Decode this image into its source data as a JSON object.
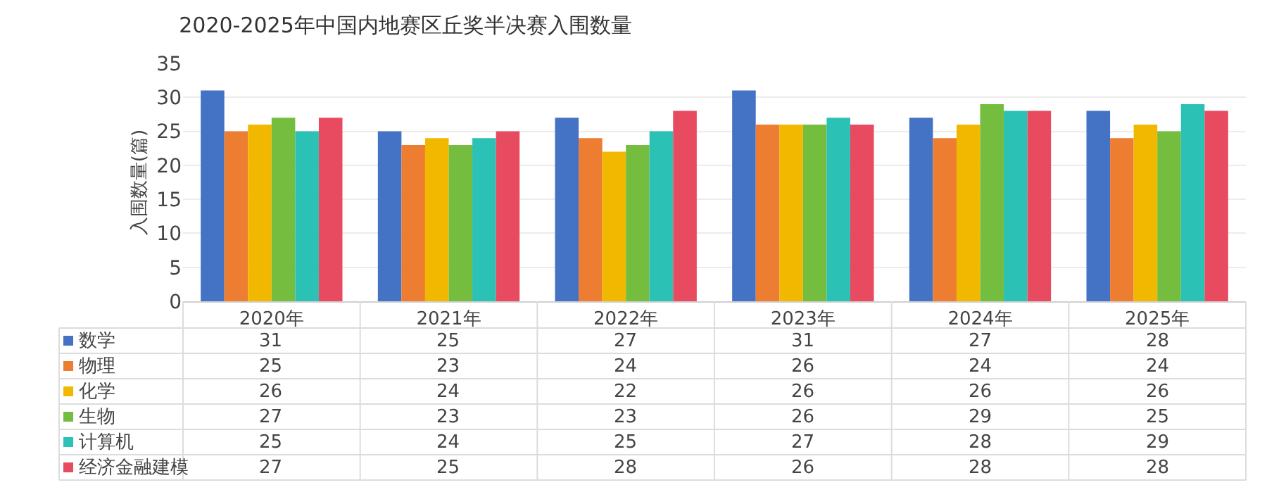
{
  "chart_data": {
    "type": "bar",
    "title": "2020-2025年中国内地赛区丘奖半决赛入围数量",
    "ylabel": "入围数量(篇)",
    "categories": [
      "2020年",
      "2021年",
      "2022年",
      "2023年",
      "2024年",
      "2025年"
    ],
    "series": [
      {
        "name": "数学",
        "color": "#4472c4",
        "values": [
          31,
          25,
          27,
          31,
          27,
          28
        ]
      },
      {
        "name": "物理",
        "color": "#ed7d31",
        "values": [
          25,
          23,
          24,
          26,
          24,
          24
        ]
      },
      {
        "name": "化学",
        "color": "#f2b800",
        "values": [
          26,
          24,
          22,
          26,
          26,
          26
        ]
      },
      {
        "name": "生物",
        "color": "#74bd3f",
        "values": [
          27,
          23,
          23,
          26,
          29,
          25
        ]
      },
      {
        "name": "计算机",
        "color": "#2bc1b5",
        "values": [
          25,
          24,
          25,
          27,
          28,
          29
        ]
      },
      {
        "name": "经济金融建模",
        "color": "#e84a5f",
        "values": [
          27,
          25,
          28,
          26,
          28,
          28
        ]
      }
    ],
    "ylim": [
      0,
      35
    ],
    "yticks": [
      0,
      5,
      10,
      15,
      20,
      25,
      30,
      35
    ],
    "grid": "y",
    "data_labels": true,
    "legend": "bottom left"
  }
}
